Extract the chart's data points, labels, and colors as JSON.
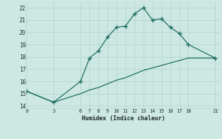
{
  "xlabel": "Humidex (Indice chaleur)",
  "bg_color": "#cde8e3",
  "grid_color": "#b8d8d2",
  "line_color": "#1a6b5e",
  "line1_x": [
    0,
    3,
    6,
    7,
    8,
    9,
    10,
    11,
    12,
    13,
    14,
    15,
    16,
    17,
    18,
    21
  ],
  "line1_y": [
    15.2,
    14.3,
    16.0,
    17.9,
    18.5,
    19.6,
    20.4,
    20.5,
    21.5,
    22.0,
    21.0,
    21.1,
    20.4,
    19.9,
    19.0,
    17.9
  ],
  "line2_x": [
    0,
    3,
    6,
    7,
    8,
    9,
    10,
    11,
    12,
    13,
    14,
    15,
    16,
    17,
    18,
    21
  ],
  "line2_y": [
    15.2,
    14.3,
    15.0,
    15.3,
    15.5,
    15.8,
    16.1,
    16.3,
    16.6,
    16.9,
    17.1,
    17.3,
    17.5,
    17.7,
    17.9,
    17.9
  ],
  "xticks": [
    0,
    3,
    6,
    7,
    8,
    9,
    10,
    11,
    12,
    13,
    14,
    15,
    16,
    17,
    18,
    21
  ],
  "yticks": [
    14,
    15,
    16,
    17,
    18,
    19,
    20,
    21,
    22
  ],
  "xlim": [
    0,
    21.5
  ],
  "ylim": [
    13.8,
    22.4
  ]
}
